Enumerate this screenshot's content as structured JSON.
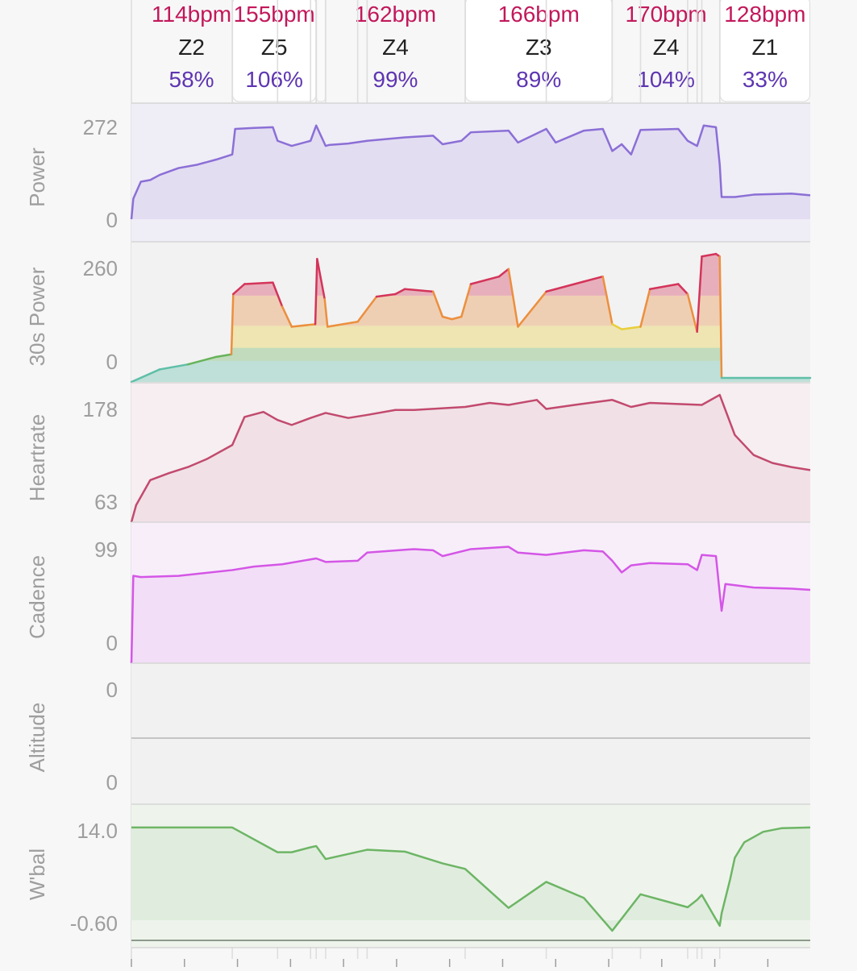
{
  "intervals": [
    {
      "hr": "114bpm",
      "zone": "Z2",
      "pct": "58%",
      "t0": 0,
      "t1": 10.7
    },
    {
      "hr": "155bpm",
      "zone": "Z5",
      "pct": "106%",
      "t0": 10.7,
      "t1": 19.6
    },
    {
      "hr": "",
      "zone": "",
      "pct": "",
      "t0": 19.6,
      "t1": 20.6
    },
    {
      "hr": "162bpm",
      "zone": "Z4",
      "pct": "99%",
      "t0": 20.6,
      "t1": 35.4
    },
    {
      "hr": "166bpm",
      "zone": "Z3",
      "pct": "89%",
      "t0": 35.4,
      "t1": 51.0
    },
    {
      "hr": "170bpm",
      "zone": "Z4",
      "pct": "104%",
      "t0": 51.0,
      "t1": 62.4
    },
    {
      "hr": "128bpm",
      "zone": "Z1",
      "pct": "33%",
      "t0": 62.4,
      "t1": 72.0
    }
  ],
  "colors": {
    "hr_text": "#c2185b",
    "zone_text": "#222222",
    "pct_text": "#5e35b1",
    "axis_label": "#9e9e9e",
    "power": "#8b6fd6",
    "heartrate": "#c24a6e",
    "cadence": "#d456e6",
    "wbal": "#6db565"
  },
  "chart_data": [
    {
      "type": "line",
      "name": "power",
      "ylabel": "Power",
      "ticks": [
        "272",
        "0"
      ],
      "ylim": [
        0,
        272
      ],
      "x": [
        0,
        0.2,
        1,
        2,
        3,
        5,
        7,
        9,
        10.7,
        11,
        13,
        15,
        15.5,
        17,
        19,
        19.6,
        20.6,
        21,
        23,
        25,
        27,
        29,
        32,
        33,
        35,
        36,
        40,
        41,
        44,
        45,
        48,
        50,
        51,
        52,
        53,
        54,
        58,
        59,
        60,
        60.7,
        62,
        62.4,
        62.6,
        64,
        66,
        70,
        72
      ],
      "y": [
        0,
        60,
        110,
        115,
        130,
        150,
        160,
        175,
        190,
        265,
        268,
        270,
        230,
        215,
        230,
        275,
        215,
        218,
        222,
        230,
        235,
        240,
        245,
        220,
        230,
        255,
        260,
        225,
        265,
        225,
        260,
        265,
        200,
        220,
        190,
        262,
        265,
        230,
        215,
        275,
        270,
        160,
        65,
        65,
        72,
        75,
        70
      ]
    },
    {
      "type": "line",
      "name": "30s-power",
      "ylabel": "30s Power",
      "ticks": [
        "260",
        "0"
      ],
      "ylim": [
        0,
        260
      ],
      "zone_levels": [
        42,
        68,
        112,
        172,
        228,
        260
      ],
      "zone_colors": [
        "#5fbfa8",
        "#67b35a",
        "#e8cf3b",
        "#ec8f3e",
        "#d4345a",
        "#d4345a"
      ],
      "x": [
        0,
        3,
        6,
        9,
        10.6,
        10.8,
        12,
        15,
        16,
        17,
        19.5,
        19.7,
        20.5,
        20.8,
        24,
        26,
        28,
        29,
        32,
        33,
        34,
        35,
        36,
        39,
        40,
        41,
        44,
        45,
        48,
        50,
        51,
        52,
        54,
        55,
        58,
        59,
        60,
        60.5,
        62,
        62.4,
        62.6,
        72
      ],
      "y": [
        0,
        25,
        35,
        50,
        55,
        175,
        195,
        198,
        150,
        110,
        115,
        245,
        165,
        110,
        120,
        170,
        175,
        185,
        180,
        130,
        125,
        130,
        195,
        210,
        225,
        110,
        180,
        185,
        200,
        210,
        115,
        105,
        110,
        185,
        195,
        175,
        100,
        250,
        255,
        250,
        8,
        8
      ]
    },
    {
      "type": "line",
      "name": "heartrate",
      "ylabel": "Heartrate",
      "ticks": [
        "178",
        "63"
      ],
      "ylim": [
        63,
        178
      ],
      "x": [
        0,
        0.5,
        2,
        4,
        6,
        8,
        10.7,
        12,
        14,
        15.5,
        17,
        19,
        20.6,
        23,
        25,
        28,
        30,
        35.4,
        38,
        40,
        43,
        44,
        47,
        51,
        53,
        55,
        60.5,
        62.4,
        64,
        66,
        68,
        70,
        72
      ],
      "y": [
        63,
        80,
        105,
        112,
        118,
        126,
        140,
        168,
        173,
        165,
        160,
        167,
        172,
        167,
        170,
        175,
        175,
        178,
        182,
        180,
        185,
        176,
        180,
        185,
        178,
        182,
        180,
        190,
        150,
        130,
        122,
        118,
        115
      ]
    },
    {
      "type": "line",
      "name": "cadence",
      "ylabel": "Cadence",
      "ticks": [
        "99",
        "0"
      ],
      "ylim": [
        0,
        99
      ],
      "x": [
        0,
        0.2,
        1,
        5,
        10.7,
        13,
        16,
        19.6,
        20.6,
        24,
        25,
        30,
        32,
        33,
        36,
        40,
        41,
        44,
        46,
        48,
        50,
        51,
        52,
        53,
        55,
        59,
        60,
        60.5,
        62,
        62.4,
        62.6,
        63,
        66,
        70,
        72
      ],
      "y": [
        0,
        75,
        74,
        75,
        80,
        83,
        85,
        90,
        87,
        88,
        95,
        98,
        97,
        92,
        98,
        100,
        95,
        93,
        95,
        97,
        96,
        88,
        78,
        84,
        86,
        85,
        80,
        93,
        92,
        60,
        45,
        68,
        65,
        64,
        63
      ]
    },
    {
      "type": "line",
      "name": "altitude",
      "ylabel": "Altitude",
      "ticks": [
        "0",
        "0"
      ],
      "ylim": [
        0,
        1
      ],
      "x": [],
      "y": []
    },
    {
      "type": "line",
      "name": "wbal",
      "ylabel": "W'bal",
      "ticks": [
        "14.0",
        "-0.60"
      ],
      "ylim": [
        -0.6,
        14.0
      ],
      "x": [
        0,
        10.7,
        15.5,
        17,
        19,
        19.6,
        20.6,
        25,
        29,
        33,
        35.4,
        40,
        44,
        48,
        51,
        54,
        59,
        60,
        60.5,
        62.4,
        62.6,
        63.5,
        64,
        65,
        67,
        69,
        72
      ],
      "y": [
        14.4,
        14.4,
        10.4,
        10.4,
        11.2,
        11.4,
        9.3,
        10.8,
        10.5,
        8.6,
        7.7,
        1.4,
        5.6,
        3.0,
        -2.3,
        3.6,
        1.5,
        2.7,
        3.5,
        -1.5,
        0.5,
        6.0,
        9.5,
        12.0,
        13.7,
        14.3,
        14.4
      ]
    }
  ]
}
